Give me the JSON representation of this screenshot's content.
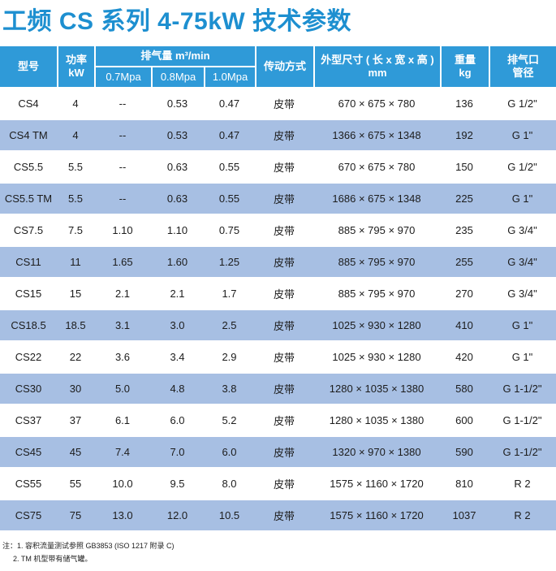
{
  "title": "工频 CS 系列 4-75kW 技术参数",
  "headers": {
    "model": "型号",
    "power": [
      "功率",
      "kW"
    ],
    "flow": "排气量 m³/min",
    "flow_sub": [
      "0.7Mpa",
      "0.8Mpa",
      "1.0Mpa"
    ],
    "drive": "传动方式",
    "dimensions": [
      "外型尺寸 ( 长 x 宽 x 高 )",
      "mm"
    ],
    "weight": [
      "重量",
      "kg"
    ],
    "outlet": [
      "排气口",
      "管径"
    ]
  },
  "rows": [
    {
      "model": "CS4",
      "power": "4",
      "f07": "--",
      "f08": "0.53",
      "f10": "0.47",
      "drive": "皮带",
      "dim": "670 × 675 × 780",
      "weight": "136",
      "outlet": "G 1/2\""
    },
    {
      "model": "CS4 TM",
      "power": "4",
      "f07": "--",
      "f08": "0.53",
      "f10": "0.47",
      "drive": "皮带",
      "dim": "1366 × 675 × 1348",
      "weight": "192",
      "outlet": "G 1\""
    },
    {
      "model": "CS5.5",
      "power": "5.5",
      "f07": "--",
      "f08": "0.63",
      "f10": "0.55",
      "drive": "皮带",
      "dim": "670 × 675 × 780",
      "weight": "150",
      "outlet": "G 1/2\""
    },
    {
      "model": "CS5.5 TM",
      "power": "5.5",
      "f07": "--",
      "f08": "0.63",
      "f10": "0.55",
      "drive": "皮带",
      "dim": "1686 × 675 × 1348",
      "weight": "225",
      "outlet": "G 1\""
    },
    {
      "model": "CS7.5",
      "power": "7.5",
      "f07": "1.10",
      "f08": "1.10",
      "f10": "0.75",
      "drive": "皮带",
      "dim": "885 × 795 × 970",
      "weight": "235",
      "outlet": "G 3/4\""
    },
    {
      "model": "CS11",
      "power": "11",
      "f07": "1.65",
      "f08": "1.60",
      "f10": "1.25",
      "drive": "皮带",
      "dim": "885 × 795 × 970",
      "weight": "255",
      "outlet": "G 3/4\""
    },
    {
      "model": "CS15",
      "power": "15",
      "f07": "2.1",
      "f08": "2.1",
      "f10": "1.7",
      "drive": "皮带",
      "dim": "885 × 795 × 970",
      "weight": "270",
      "outlet": "G 3/4\""
    },
    {
      "model": "CS18.5",
      "power": "18.5",
      "f07": "3.1",
      "f08": "3.0",
      "f10": "2.5",
      "drive": "皮带",
      "dim": "1025 × 930 × 1280",
      "weight": "410",
      "outlet": "G 1\""
    },
    {
      "model": "CS22",
      "power": "22",
      "f07": "3.6",
      "f08": "3.4",
      "f10": "2.9",
      "drive": "皮带",
      "dim": "1025 × 930 × 1280",
      "weight": "420",
      "outlet": "G 1\""
    },
    {
      "model": "CS30",
      "power": "30",
      "f07": "5.0",
      "f08": "4.8",
      "f10": "3.8",
      "drive": "皮带",
      "dim": "1280 × 1035 × 1380",
      "weight": "580",
      "outlet": "G 1-1/2\""
    },
    {
      "model": "CS37",
      "power": "37",
      "f07": "6.1",
      "f08": "6.0",
      "f10": "5.2",
      "drive": "皮带",
      "dim": "1280 × 1035 × 1380",
      "weight": "600",
      "outlet": "G 1-1/2\""
    },
    {
      "model": "CS45",
      "power": "45",
      "f07": "7.4",
      "f08": "7.0",
      "f10": "6.0",
      "drive": "皮带",
      "dim": "1320 × 970 × 1380",
      "weight": "590",
      "outlet": "G 1-1/2\""
    },
    {
      "model": "CS55",
      "power": "55",
      "f07": "10.0",
      "f08": "9.5",
      "f10": "8.0",
      "drive": "皮带",
      "dim": "1575 × 1160 × 1720",
      "weight": "810",
      "outlet": "R 2"
    },
    {
      "model": "CS75",
      "power": "75",
      "f07": "13.0",
      "f08": "12.0",
      "f10": "10.5",
      "drive": "皮带",
      "dim": "1575 × 1160 × 1720",
      "weight": "1037",
      "outlet": "R 2"
    }
  ],
  "notes": [
    "注：1. 容积流量测试参照 GB3853 (ISO 1217 附录 C)",
    "2. TM 机型带有储气罐。"
  ],
  "colors": {
    "header": "#2f9ad8",
    "title": "#1d8fd0",
    "band": "#a7bfe3"
  }
}
